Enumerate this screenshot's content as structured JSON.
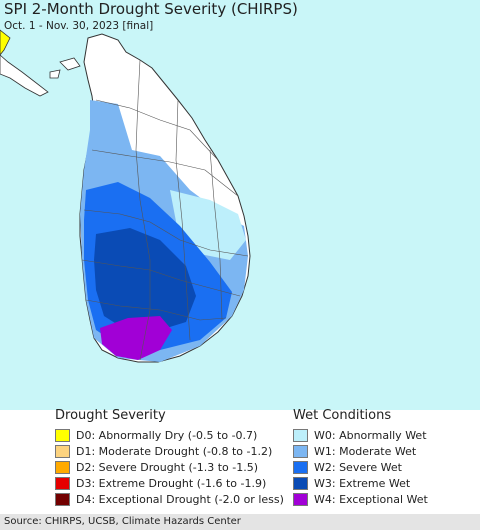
{
  "title": "SPI 2-Month Drought Severity (CHIRPS)",
  "subtitle": "Oct. 1 - Nov. 30, 2023 [final]",
  "legend": {
    "drought_heading": "Drought Severity",
    "wet_heading": "Wet Conditions",
    "drought_items": [
      {
        "code": "D0",
        "label": "D0: Abnormally Dry (-0.5 to -0.7)",
        "color": "#ffff00"
      },
      {
        "code": "D1",
        "label": "D1: Moderate Drought (-0.8 to -1.2)",
        "color": "#fcd37f"
      },
      {
        "code": "D2",
        "label": "D2: Severe Drought (-1.3 to -1.5)",
        "color": "#ffaa00"
      },
      {
        "code": "D3",
        "label": "D3: Extreme Drought (-1.6 to -1.9)",
        "color": "#e60000"
      },
      {
        "code": "D4",
        "label": "D4: Exceptional Drought (-2.0 or less)",
        "color": "#730000"
      }
    ],
    "wet_items": [
      {
        "code": "W0",
        "label": "W0: Abnormally Wet",
        "color": "#bdeffb"
      },
      {
        "code": "W1",
        "label": "W1: Moderate Wet",
        "color": "#7cb6f2"
      },
      {
        "code": "W2",
        "label": "W2: Severe Wet",
        "color": "#1a6ff2"
      },
      {
        "code": "W3",
        "label": "W3: Extreme Wet",
        "color": "#0a4bb5"
      },
      {
        "code": "W4",
        "label": "W4: Exceptional Wet",
        "color": "#a100d6"
      }
    ]
  },
  "footer": "Source: CHIRPS, UCSB, Climate Hazards Center",
  "map": {
    "ocean_color": "#c9f6f8",
    "land_color": "#ffffff",
    "border_color": "#333333"
  }
}
